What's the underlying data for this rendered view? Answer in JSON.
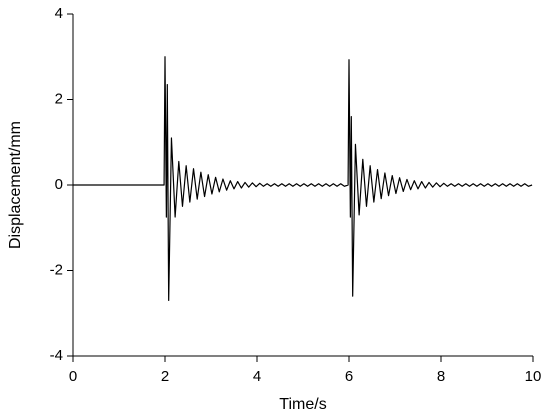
{
  "chart_data": {
    "type": "line",
    "x_label": "Time/s",
    "y_label": "Displacement/mm",
    "x": [
      0,
      1.98,
      2,
      2.03,
      2.05,
      2.08,
      2.14,
      2.22,
      2.3,
      2.38,
      2.46,
      2.54,
      2.62,
      2.7,
      2.78,
      2.86,
      2.94,
      3.02,
      3.1,
      3.18,
      3.26,
      3.34,
      3.42,
      3.5,
      3.58,
      3.66,
      3.74,
      3.82,
      3.9,
      3.98,
      4.06,
      4.14,
      4.22,
      4.3,
      4.38,
      4.46,
      4.54,
      4.62,
      4.7,
      4.78,
      4.86,
      4.94,
      5.02,
      5.1,
      5.18,
      5.26,
      5.34,
      5.42,
      5.5,
      5.58,
      5.66,
      5.74,
      5.82,
      5.9,
      5.98,
      6,
      6.03,
      6.05,
      6.08,
      6.14,
      6.22,
      6.3,
      6.38,
      6.46,
      6.54,
      6.62,
      6.7,
      6.78,
      6.86,
      6.94,
      7.02,
      7.1,
      7.18,
      7.26,
      7.34,
      7.42,
      7.5,
      7.58,
      7.66,
      7.74,
      7.82,
      7.9,
      7.98,
      8.06,
      8.14,
      8.22,
      8.3,
      8.38,
      8.46,
      8.54,
      8.62,
      8.7,
      8.78,
      8.86,
      8.94,
      9.02,
      9.1,
      9.18,
      9.26,
      9.34,
      9.42,
      9.5,
      9.58,
      9.66,
      9.74,
      9.82,
      9.9,
      9.98
    ],
    "series": [
      {
        "color": "#000000",
        "values": [
          0,
          0,
          3,
          -0.75,
          2.35,
          -2.7,
          1.1,
          -0.75,
          0.55,
          -0.5,
          0.45,
          -0.4,
          0.38,
          -0.33,
          0.3,
          -0.27,
          0.24,
          -0.21,
          0.18,
          -0.16,
          0.14,
          -0.12,
          0.1,
          -0.09,
          0.08,
          -0.07,
          0.06,
          -0.05,
          0.05,
          -0.04,
          0.04,
          -0.03,
          0.03,
          -0.03,
          0.03,
          -0.03,
          0.03,
          -0.03,
          0.03,
          -0.03,
          0.03,
          -0.03,
          0.03,
          -0.03,
          0.03,
          -0.03,
          0.03,
          -0.03,
          0.03,
          -0.03,
          0.03,
          -0.03,
          0.03,
          -0.03,
          0,
          2.93,
          -0.75,
          1.6,
          -2.6,
          0.95,
          -0.7,
          0.6,
          -0.5,
          0.45,
          -0.4,
          0.36,
          -0.32,
          0.28,
          -0.25,
          0.22,
          -0.2,
          0.17,
          -0.15,
          0.13,
          -0.11,
          0.1,
          -0.09,
          0.08,
          -0.07,
          0.06,
          -0.05,
          0.05,
          -0.04,
          0.04,
          -0.03,
          0.03,
          -0.03,
          0.03,
          -0.03,
          0.03,
          -0.03,
          0.03,
          -0.03,
          0.03,
          -0.03,
          0.03,
          -0.03,
          0.03,
          -0.03,
          0.03,
          -0.03,
          0.03,
          -0.03,
          0.03,
          -0.03,
          0.03,
          -0.03,
          0
        ]
      }
    ],
    "xlim": [
      0,
      10
    ],
    "xticks": [
      0,
      2,
      4,
      6,
      8,
      10
    ],
    "ylim": [
      -4,
      4
    ],
    "yticks": [
      -4,
      -2,
      0,
      2,
      4
    ]
  }
}
